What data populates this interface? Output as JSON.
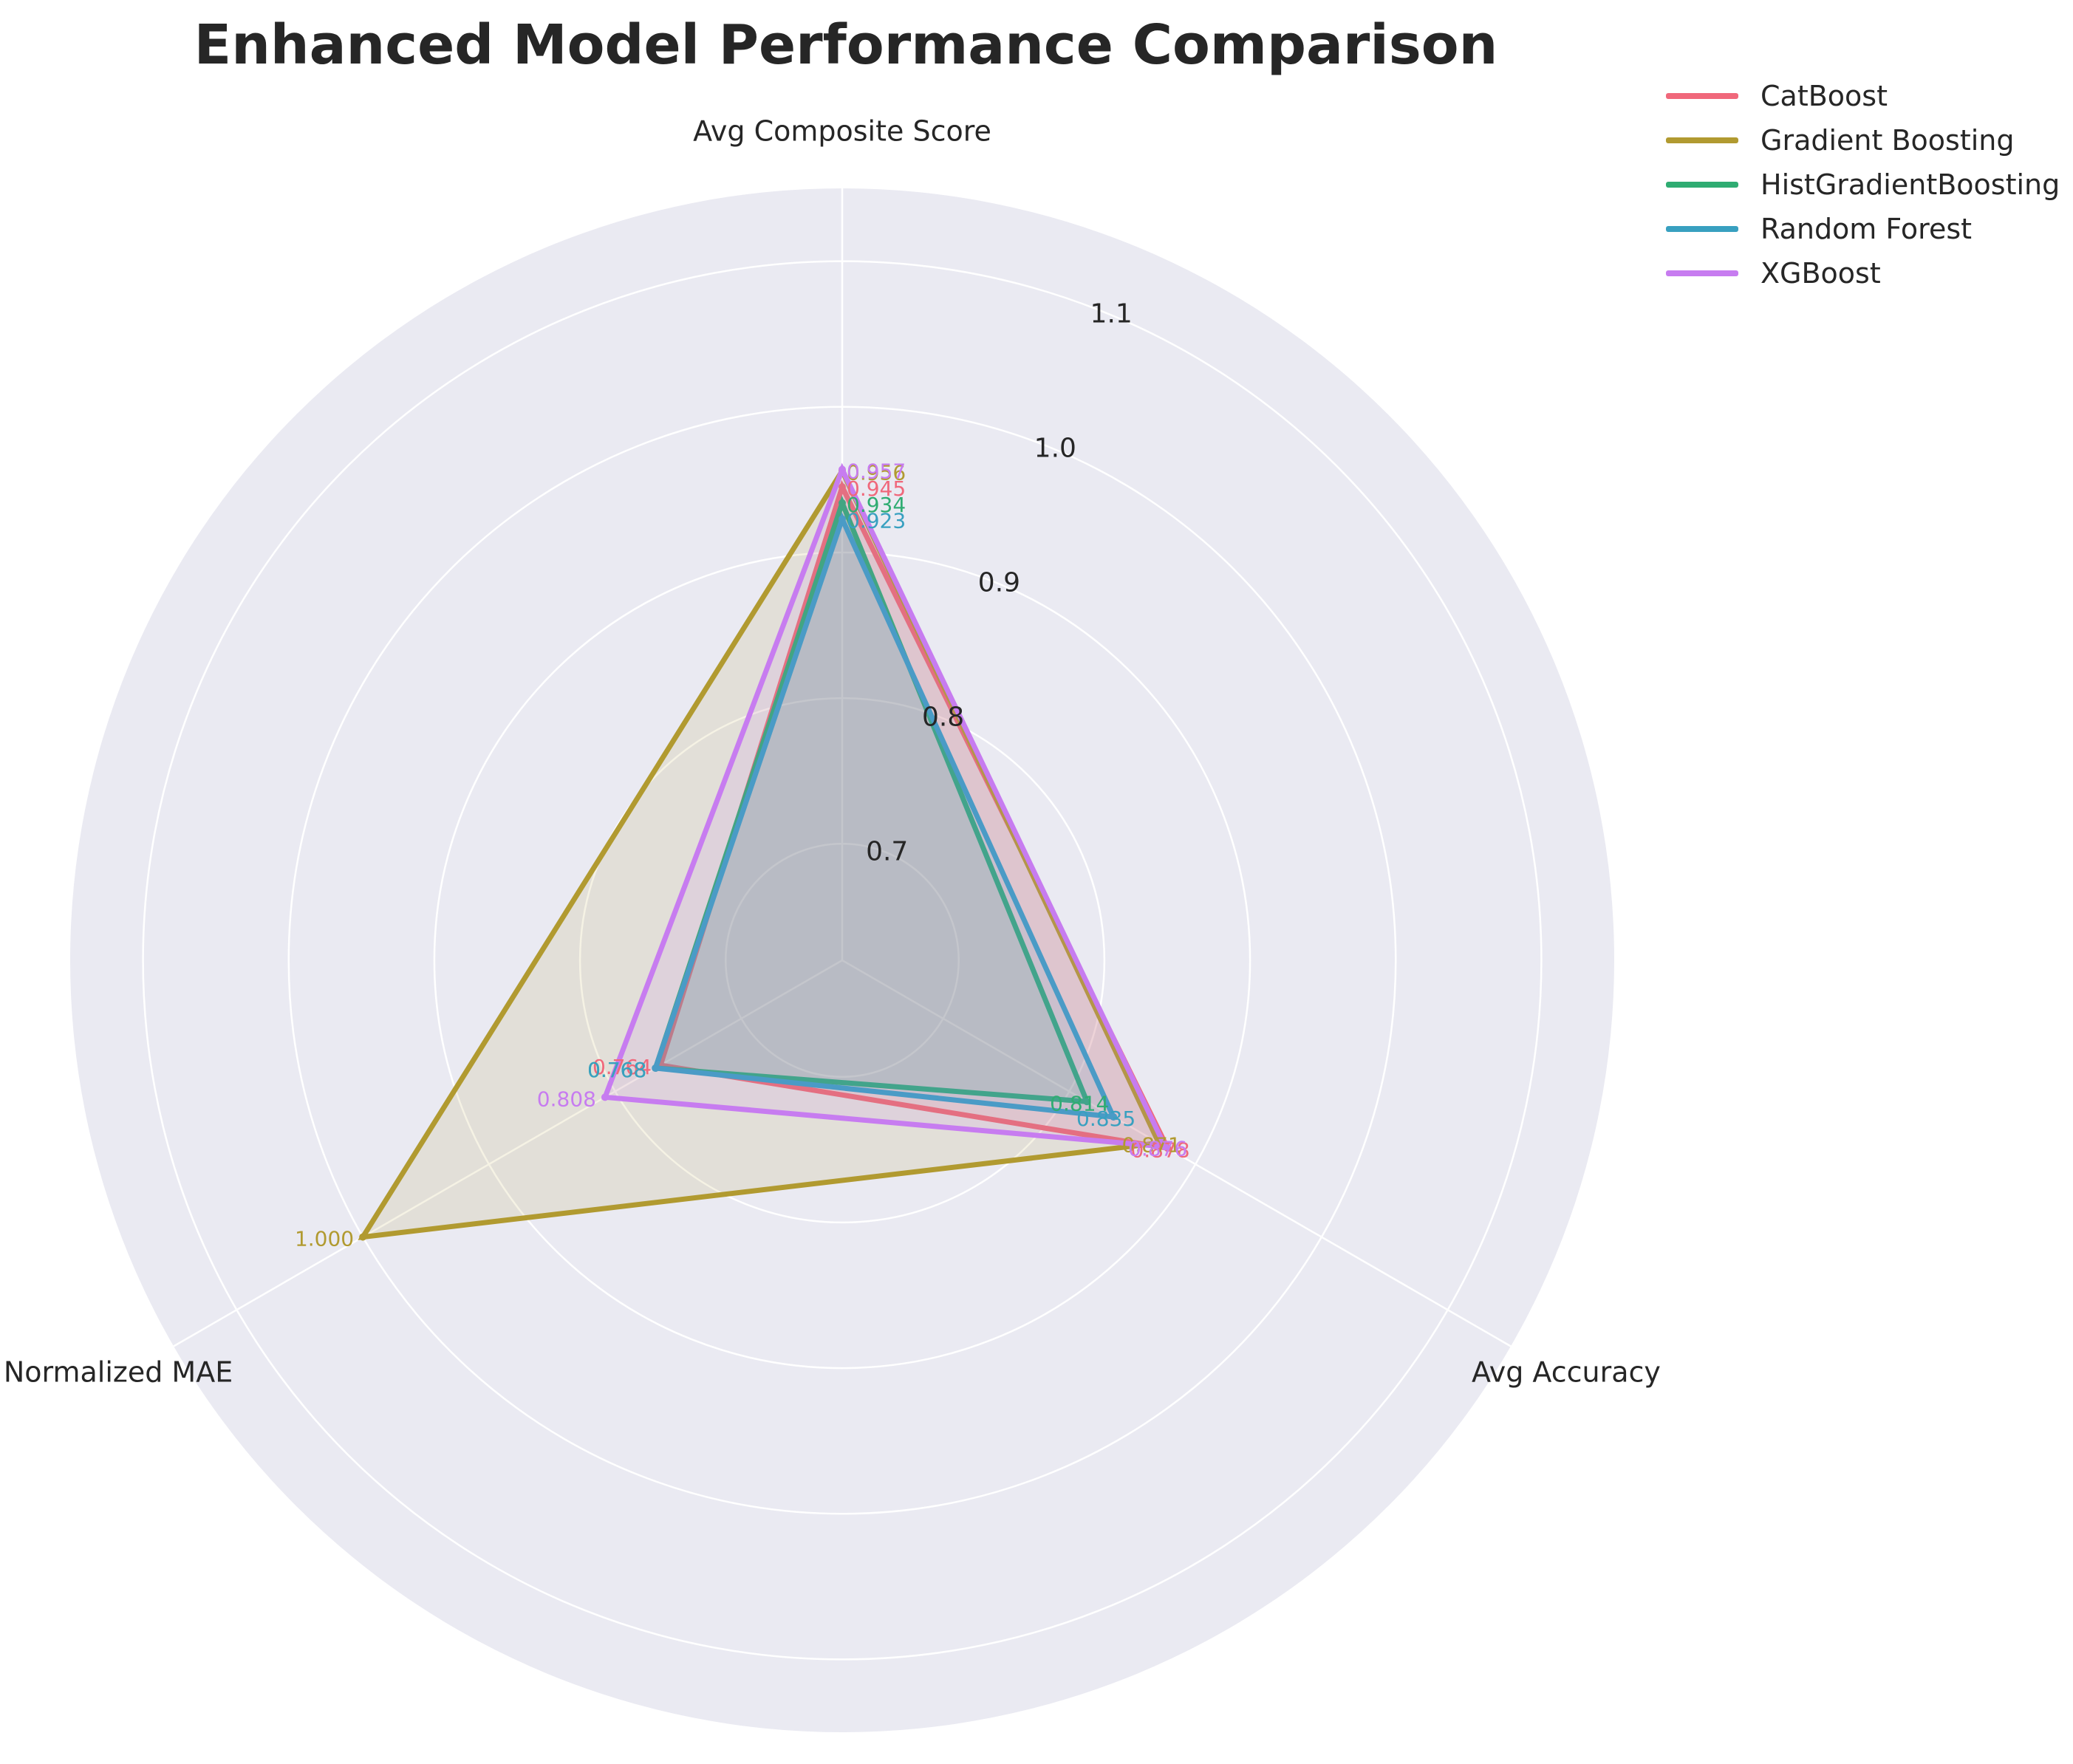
{
  "chart_data": {
    "type": "radar",
    "title": "Enhanced Model Performance Comparison",
    "axes": [
      "Avg Composite Score",
      "Avg Accuracy",
      "Normalized MAE"
    ],
    "radial_ticks": [
      "0.7",
      "0.8",
      "0.9",
      "1.0",
      "1.1"
    ],
    "rlim": [
      0.62,
      1.15
    ],
    "grid": true,
    "legend_position": "top-right",
    "series": [
      {
        "name": "CatBoost",
        "color": "#f0687b",
        "values": [
          0.945,
          0.878,
          0.764
        ],
        "labels": [
          "0.945",
          "0.878",
          "0.764"
        ]
      },
      {
        "name": "Gradient Boosting",
        "color": "#b19a30",
        "values": [
          0.956,
          0.871,
          1.0
        ],
        "labels": [
          "0.956",
          "0.871",
          "1.000"
        ]
      },
      {
        "name": "HistGradientBoosting",
        "color": "#2fac72",
        "values": [
          0.934,
          0.814,
          0.768
        ],
        "labels": [
          "0.934",
          "0.814",
          "0.768"
        ]
      },
      {
        "name": "Random Forest",
        "color": "#38a0c0",
        "values": [
          0.923,
          0.835,
          0.768
        ],
        "labels": [
          "0.923",
          "0.835",
          "0.768"
        ]
      },
      {
        "name": "XGBoost",
        "color": "#c77cf0",
        "values": [
          0.957,
          0.876,
          0.808
        ],
        "labels": [
          "0.957",
          "0.876",
          "0.808"
        ]
      }
    ]
  }
}
